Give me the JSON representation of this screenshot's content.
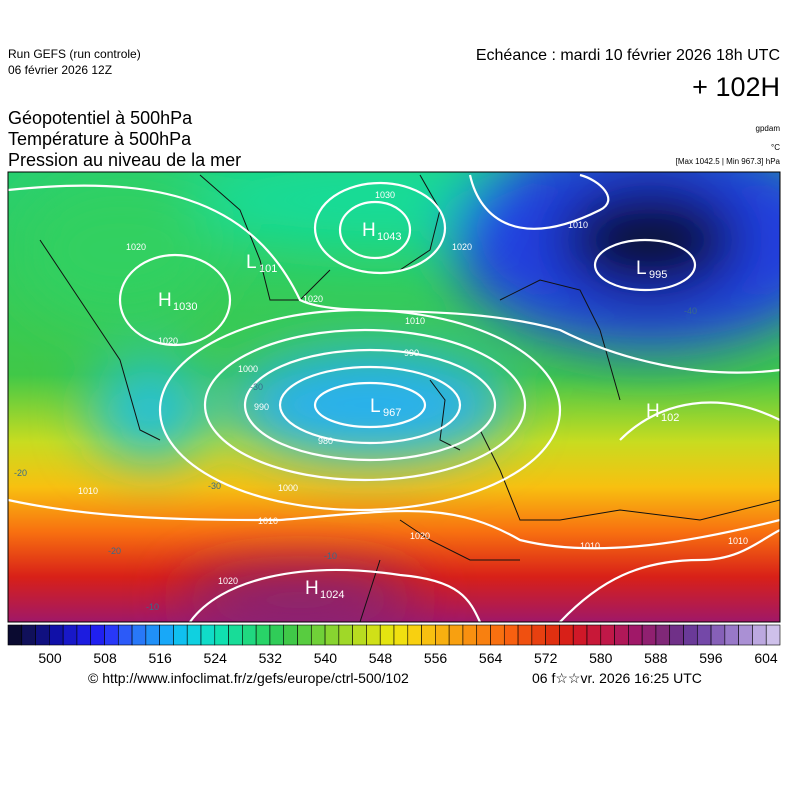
{
  "header": {
    "run": "Run GEFS (run controle)",
    "run_date": "06 février 2026 12Z",
    "valid": "Echéance : mardi 10 février 2026 18h UTC",
    "lead": "+ 102H"
  },
  "fields": [
    "Géopotentiel à 500hPa",
    "Température à 500hPa",
    "Pression au niveau de la mer"
  ],
  "units": {
    "geopotential": "gpdam",
    "temperature": "°C",
    "pressure": "[Max 1042.5 | Min 967.3] hPa"
  },
  "map": {
    "centers": [
      {
        "letter": "H",
        "value": "1043"
      },
      {
        "letter": "L",
        "value": "995"
      },
      {
        "letter": "H",
        "value": "1030"
      },
      {
        "letter": "L",
        "value": "967"
      },
      {
        "letter": "H",
        "value": "1024"
      },
      {
        "letter": "H",
        "value": "102"
      },
      {
        "letter": "L",
        "value": "101"
      }
    ],
    "isobar_labels": [
      "1030",
      "1020",
      "1010",
      "1020",
      "1020",
      "1010",
      "990",
      "1000",
      "980",
      "990",
      "1000",
      "1010",
      "1010",
      "1020",
      "1020",
      "1010",
      "1020",
      "1010"
    ],
    "temperature_labels": [
      "-30",
      "-30",
      "-20",
      "-20",
      "-10",
      "-10",
      "-40"
    ]
  },
  "colorbar": {
    "ticks": [
      500,
      508,
      516,
      524,
      532,
      540,
      548,
      556,
      564,
      572,
      580,
      588,
      596,
      604
    ],
    "colors": [
      "#0a0a30",
      "#10105a",
      "#101080",
      "#1010a8",
      "#1818c8",
      "#1c1ce0",
      "#2020f0",
      "#2838f8",
      "#2c5af8",
      "#2878f8",
      "#2090f8",
      "#18a8f8",
      "#10c0f0",
      "#10d0e0",
      "#10dcc8",
      "#10e0b0",
      "#18dc98",
      "#20d880",
      "#28d468",
      "#30cc58",
      "#40c848",
      "#58cc40",
      "#70d038",
      "#88d430",
      "#a0d828",
      "#b8dc20",
      "#d0e018",
      "#e4e410",
      "#f0e010",
      "#f8d010",
      "#f8c010",
      "#f8b010",
      "#f8a010",
      "#f89010",
      "#f88010",
      "#f87010",
      "#f86010",
      "#f05010",
      "#e84010",
      "#e03010",
      "#d82018",
      "#d01828",
      "#c81838",
      "#c01848",
      "#b01858",
      "#a01868",
      "#902070",
      "#802878",
      "#703088",
      "#6a3a98",
      "#7448a8",
      "#8660b8",
      "#9878c8",
      "#aa90d4",
      "#bca8e0",
      "#cec0ea"
    ]
  },
  "footer": {
    "url": "© http://www.infoclimat.fr/z/gefs/europe/ctrl-500/102",
    "generated": "06 f☆☆vr. 2026 16:25 UTC"
  }
}
